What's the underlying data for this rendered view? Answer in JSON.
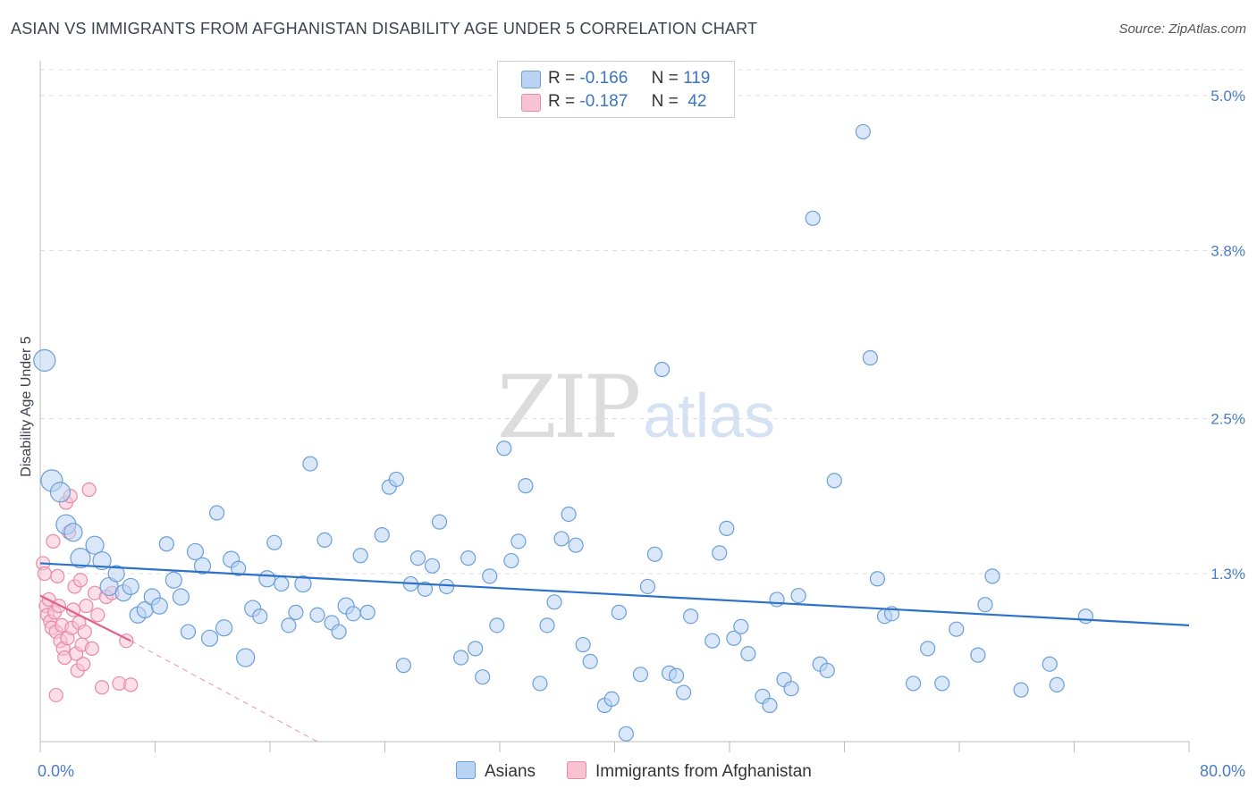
{
  "title": "ASIAN VS IMMIGRANTS FROM AFGHANISTAN DISABILITY AGE UNDER 5 CORRELATION CHART",
  "source": "Source: ZipAtlas.com",
  "watermark": {
    "zip": "ZIP",
    "atlas": "atlas"
  },
  "legend": {
    "r_label": "R =",
    "n_label": "N =",
    "rows": [
      {
        "r": "-0.166",
        "n": "119"
      },
      {
        "r": "-0.187",
        "n": "42"
      }
    ]
  },
  "bottom_legend": [
    "Asians",
    "Immigrants from Afghanistan"
  ],
  "colors": {
    "blue_fill": "#b9d3f2",
    "blue_stroke": "#6a9fd8",
    "blue_line": "#2d72c8",
    "pink_fill": "#f7c3d3",
    "pink_stroke": "#e88aa8",
    "pink_line": "#e0628a",
    "grid": "#dddddd",
    "axis": "#bbbbbb"
  },
  "chart_data": {
    "type": "scatter",
    "title": "ASIAN VS IMMIGRANTS FROM AFGHANISTAN DISABILITY AGE UNDER 5 CORRELATION CHART",
    "xlabel": "",
    "ylabel": "Disability Age Under 5",
    "xlim": [
      0,
      80
    ],
    "ylim": [
      0,
      5.2
    ],
    "y_ticks": [
      1.3,
      2.5,
      3.8,
      5.0
    ],
    "y_tick_labels": [
      "1.3%",
      "2.5%",
      "3.8%",
      "5.0%"
    ],
    "x_tick_labels": [
      "0.0%",
      "80.0%"
    ],
    "grid": true,
    "series": [
      {
        "name": "Asians",
        "r": -0.166,
        "n": 119,
        "trend": {
          "x": [
            0,
            80
          ],
          "y": [
            1.38,
            0.9
          ]
        },
        "points": [
          [
            0.3,
            2.95,
            12
          ],
          [
            0.8,
            2.02,
            12
          ],
          [
            1.4,
            1.93,
            11
          ],
          [
            1.8,
            1.68,
            11
          ],
          [
            2.3,
            1.62,
            10
          ],
          [
            2.8,
            1.42,
            11
          ],
          [
            3.8,
            1.52,
            10
          ],
          [
            4.3,
            1.4,
            10
          ],
          [
            4.8,
            1.2,
            10
          ],
          [
            5.3,
            1.3,
            9
          ],
          [
            5.8,
            1.15,
            9
          ],
          [
            6.3,
            1.2,
            9
          ],
          [
            6.8,
            0.98,
            9
          ],
          [
            7.3,
            1.02,
            9
          ],
          [
            7.8,
            1.12,
            9
          ],
          [
            8.3,
            1.05,
            9
          ],
          [
            8.8,
            1.53,
            8
          ],
          [
            9.3,
            1.25,
            9
          ],
          [
            9.8,
            1.12,
            9
          ],
          [
            10.3,
            0.85,
            8
          ],
          [
            10.8,
            1.47,
            9
          ],
          [
            11.3,
            1.36,
            9
          ],
          [
            11.8,
            0.8,
            9
          ],
          [
            12.3,
            1.77,
            8
          ],
          [
            12.8,
            0.88,
            9
          ],
          [
            13.3,
            1.41,
            9
          ],
          [
            13.8,
            1.34,
            8
          ],
          [
            14.3,
            0.65,
            10
          ],
          [
            14.8,
            1.03,
            9
          ],
          [
            15.3,
            0.97,
            8
          ],
          [
            15.8,
            1.26,
            9
          ],
          [
            16.3,
            1.54,
            8
          ],
          [
            16.8,
            1.22,
            8
          ],
          [
            17.3,
            0.9,
            8
          ],
          [
            17.8,
            1.0,
            8
          ],
          [
            18.3,
            1.22,
            9
          ],
          [
            18.8,
            2.15,
            8
          ],
          [
            19.3,
            0.98,
            8
          ],
          [
            19.8,
            1.56,
            8
          ],
          [
            20.3,
            0.92,
            8
          ],
          [
            20.8,
            0.85,
            8
          ],
          [
            21.3,
            1.05,
            9
          ],
          [
            21.8,
            0.99,
            8
          ],
          [
            22.3,
            1.44,
            8
          ],
          [
            22.8,
            1.0,
            8
          ],
          [
            23.8,
            1.6,
            8
          ],
          [
            24.3,
            1.97,
            8
          ],
          [
            24.8,
            2.03,
            8
          ],
          [
            25.3,
            0.59,
            8
          ],
          [
            25.8,
            1.22,
            8
          ],
          [
            26.3,
            1.42,
            8
          ],
          [
            26.8,
            1.18,
            8
          ],
          [
            27.3,
            1.36,
            8
          ],
          [
            27.8,
            1.7,
            8
          ],
          [
            28.3,
            1.2,
            8
          ],
          [
            29.3,
            0.65,
            8
          ],
          [
            29.8,
            1.42,
            8
          ],
          [
            30.3,
            0.72,
            8
          ],
          [
            30.8,
            0.5,
            8
          ],
          [
            31.3,
            1.28,
            8
          ],
          [
            31.8,
            0.9,
            8
          ],
          [
            32.3,
            2.27,
            8
          ],
          [
            32.8,
            1.4,
            8
          ],
          [
            33.3,
            1.55,
            8
          ],
          [
            33.8,
            1.98,
            8
          ],
          [
            34.8,
            0.45,
            8
          ],
          [
            35.3,
            0.9,
            8
          ],
          [
            35.8,
            1.08,
            8
          ],
          [
            36.3,
            1.57,
            8
          ],
          [
            36.8,
            1.76,
            8
          ],
          [
            37.3,
            1.52,
            8
          ],
          [
            37.8,
            0.75,
            8
          ],
          [
            38.3,
            0.62,
            8
          ],
          [
            39.3,
            0.28,
            8
          ],
          [
            39.8,
            0.33,
            8
          ],
          [
            40.3,
            1.0,
            8
          ],
          [
            40.8,
            0.06,
            8
          ],
          [
            41.8,
            0.52,
            8
          ],
          [
            42.3,
            1.2,
            8
          ],
          [
            42.8,
            1.45,
            8
          ],
          [
            43.3,
            2.88,
            8
          ],
          [
            43.8,
            0.53,
            8
          ],
          [
            44.3,
            0.51,
            8
          ],
          [
            44.8,
            0.38,
            8
          ],
          [
            45.3,
            0.97,
            8
          ],
          [
            46.8,
            0.78,
            8
          ],
          [
            47.3,
            1.46,
            8
          ],
          [
            47.8,
            1.65,
            8
          ],
          [
            48.3,
            0.8,
            8
          ],
          [
            48.8,
            0.89,
            8
          ],
          [
            49.3,
            0.68,
            8
          ],
          [
            50.3,
            0.35,
            8
          ],
          [
            50.8,
            0.28,
            8
          ],
          [
            51.3,
            1.1,
            8
          ],
          [
            51.8,
            0.48,
            8
          ],
          [
            52.3,
            0.41,
            8
          ],
          [
            52.8,
            1.13,
            8
          ],
          [
            53.8,
            4.05,
            8
          ],
          [
            54.3,
            0.6,
            8
          ],
          [
            54.8,
            0.55,
            8
          ],
          [
            55.3,
            2.02,
            8
          ],
          [
            57.3,
            4.72,
            8
          ],
          [
            57.8,
            2.97,
            8
          ],
          [
            58.3,
            1.26,
            8
          ],
          [
            58.8,
            0.97,
            8
          ],
          [
            59.3,
            0.99,
            8
          ],
          [
            60.8,
            0.45,
            8
          ],
          [
            61.8,
            0.72,
            8
          ],
          [
            62.8,
            0.45,
            8
          ],
          [
            63.8,
            0.87,
            8
          ],
          [
            65.3,
            0.67,
            8
          ],
          [
            65.8,
            1.06,
            8
          ],
          [
            66.3,
            1.28,
            8
          ],
          [
            68.3,
            0.4,
            8
          ],
          [
            70.3,
            0.6,
            8
          ],
          [
            70.8,
            0.44,
            8
          ],
          [
            72.8,
            0.97,
            8
          ]
        ]
      },
      {
        "name": "Immigrants from Afghanistan",
        "r": -0.187,
        "n": 42,
        "trend": {
          "x": [
            0,
            6.3
          ],
          "y": [
            1.13,
            0.78
          ]
        },
        "trend_extension": {
          "x": [
            6.3,
            19.3
          ],
          "y": [
            0.78,
            0.0
          ]
        },
        "points": [
          [
            0.2,
            1.38
          ],
          [
            0.3,
            1.3
          ],
          [
            0.4,
            1.05
          ],
          [
            0.5,
            0.98
          ],
          [
            0.6,
            1.1
          ],
          [
            0.7,
            0.93
          ],
          [
            0.8,
            0.88
          ],
          [
            0.9,
            1.55
          ],
          [
            1.0,
            1.0
          ],
          [
            1.1,
            0.85
          ],
          [
            1.2,
            1.28
          ],
          [
            1.3,
            1.05
          ],
          [
            1.4,
            0.78
          ],
          [
            1.5,
            0.9
          ],
          [
            1.6,
            0.72
          ],
          [
            1.7,
            0.65
          ],
          [
            1.8,
            1.85
          ],
          [
            1.9,
            0.8
          ],
          [
            2.0,
            1.62
          ],
          [
            2.1,
            1.9
          ],
          [
            2.2,
            0.88
          ],
          [
            2.3,
            1.02
          ],
          [
            2.4,
            1.2
          ],
          [
            2.5,
            0.68
          ],
          [
            2.6,
            0.55
          ],
          [
            2.7,
            0.92
          ],
          [
            2.8,
            1.25
          ],
          [
            2.9,
            0.75
          ],
          [
            3.0,
            0.6
          ],
          [
            3.1,
            0.85
          ],
          [
            3.2,
            1.05
          ],
          [
            3.4,
            1.95
          ],
          [
            3.6,
            0.72
          ],
          [
            3.8,
            1.15
          ],
          [
            4.0,
            0.98
          ],
          [
            4.3,
            0.42
          ],
          [
            4.6,
            1.12
          ],
          [
            5.0,
            1.15
          ],
          [
            5.5,
            0.45
          ],
          [
            6.0,
            0.78
          ],
          [
            6.3,
            0.44
          ],
          [
            1.1,
            0.36
          ]
        ]
      }
    ]
  }
}
